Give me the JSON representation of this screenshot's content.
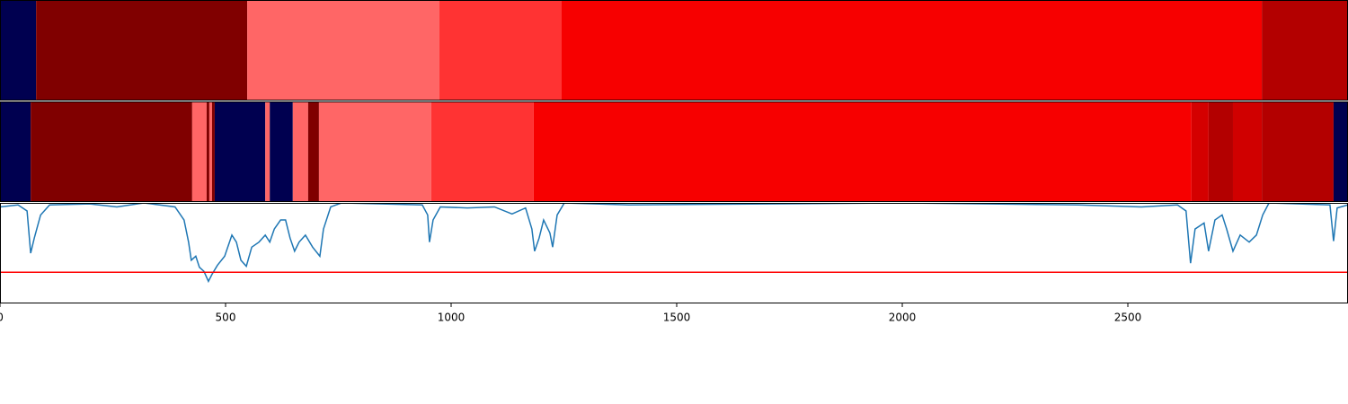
{
  "chart_data": {
    "type": "line",
    "xlim": [
      0,
      2988
    ],
    "ylim": [
      0,
      1
    ],
    "xticks": [
      0,
      500,
      1000,
      1500,
      2000,
      2500
    ],
    "bands": [
      {
        "segments": [
          {
            "start": 0,
            "end": 80,
            "color": "#000050"
          },
          {
            "start": 80,
            "end": 548,
            "color": "#800000"
          },
          {
            "start": 548,
            "end": 974,
            "color": "#ff6666"
          },
          {
            "start": 974,
            "end": 1245,
            "color": "#ff3333"
          },
          {
            "start": 1245,
            "end": 2797,
            "color": "#f70000"
          },
          {
            "start": 2797,
            "end": 2988,
            "color": "#b30000"
          }
        ]
      },
      {
        "segments": [
          {
            "start": 0,
            "end": 68,
            "color": "#000050"
          },
          {
            "start": 68,
            "end": 426,
            "color": "#800000"
          },
          {
            "start": 426,
            "end": 458,
            "color": "#ff6666"
          },
          {
            "start": 458,
            "end": 464,
            "color": "#800000"
          },
          {
            "start": 464,
            "end": 470,
            "color": "#ff6666"
          },
          {
            "start": 470,
            "end": 476,
            "color": "#800000"
          },
          {
            "start": 476,
            "end": 588,
            "color": "#000050"
          },
          {
            "start": 588,
            "end": 598,
            "color": "#ff6666"
          },
          {
            "start": 598,
            "end": 649,
            "color": "#000050"
          },
          {
            "start": 649,
            "end": 683,
            "color": "#ff6666"
          },
          {
            "start": 683,
            "end": 707,
            "color": "#800000"
          },
          {
            "start": 707,
            "end": 956,
            "color": "#ff6666"
          },
          {
            "start": 956,
            "end": 1183,
            "color": "#ff3333"
          },
          {
            "start": 1183,
            "end": 2641,
            "color": "#f70000"
          },
          {
            "start": 2641,
            "end": 2679,
            "color": "#d40000"
          },
          {
            "start": 2679,
            "end": 2733,
            "color": "#b30000"
          },
          {
            "start": 2733,
            "end": 2797,
            "color": "#d00000"
          },
          {
            "start": 2797,
            "end": 2956,
            "color": "#b30000"
          },
          {
            "start": 2956,
            "end": 2988,
            "color": "#000050"
          }
        ]
      }
    ],
    "x": [
      0,
      40,
      60,
      68,
      76,
      90,
      110,
      199,
      259,
      319,
      388,
      408,
      418,
      424,
      434,
      442,
      452,
      462,
      470,
      482,
      498,
      514,
      524,
      534,
      546,
      558,
      574,
      588,
      598,
      608,
      622,
      633,
      643,
      653,
      663,
      677,
      693,
      709,
      717,
      733,
      757,
      936,
      948,
      952,
      960,
      976,
      1036,
      1096,
      1135,
      1165,
      1179,
      1185,
      1195,
      1205,
      1219,
      1225,
      1235,
      1251,
      1394,
      1992,
      2390,
      2530,
      2610,
      2629,
      2639,
      2649,
      2669,
      2679,
      2693,
      2709,
      2719,
      2733,
      2749,
      2769,
      2785,
      2799,
      2813,
      2948,
      2956,
      2964,
      2988
    ],
    "series": [
      {
        "color": "#1f77b4",
        "values": [
          0.96,
          0.98,
          0.92,
          0.5,
          0.65,
          0.88,
          0.98,
          0.99,
          0.96,
          1.0,
          0.96,
          0.83,
          0.61,
          0.43,
          0.47,
          0.36,
          0.32,
          0.22,
          0.29,
          0.38,
          0.47,
          0.68,
          0.61,
          0.43,
          0.37,
          0.56,
          0.61,
          0.68,
          0.61,
          0.74,
          0.83,
          0.83,
          0.65,
          0.52,
          0.61,
          0.68,
          0.56,
          0.47,
          0.74,
          0.96,
          1.0,
          0.98,
          0.88,
          0.61,
          0.83,
          0.96,
          0.95,
          0.96,
          0.89,
          0.95,
          0.74,
          0.52,
          0.65,
          0.83,
          0.7,
          0.56,
          0.88,
          1.0,
          0.98,
          1.0,
          0.98,
          0.96,
          0.98,
          0.92,
          0.4,
          0.74,
          0.8,
          0.52,
          0.83,
          0.88,
          0.74,
          0.52,
          0.68,
          0.61,
          0.68,
          0.88,
          1.0,
          0.98,
          0.62,
          0.95,
          0.98
        ]
      }
    ],
    "threshold": {
      "value": 0.31,
      "color": "#ff0000"
    }
  }
}
